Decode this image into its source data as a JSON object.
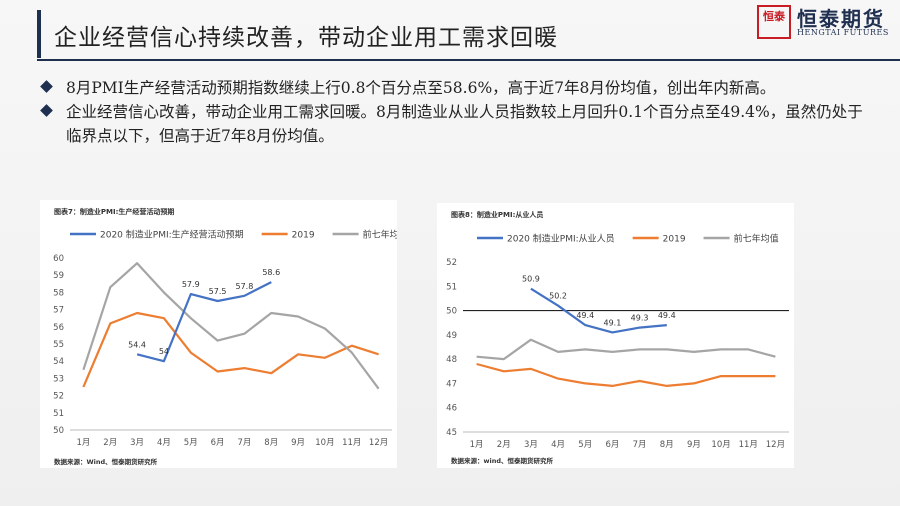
{
  "header": {
    "title": "企业经营信心持续改善，带动企业用工需求回暖",
    "logo_seal": "恒泰",
    "logo_name": "恒泰期货",
    "logo_sub": "HENGTAI FUTURES"
  },
  "bullets": [
    "8月PMI生产经营活动预期指数继续上行0.8个百分点至58.6%，高于近7年8月份均值，创出年内新高。",
    "企业经营信心改善，带动企业用工需求回暖。8月制造业从业人员指数较上月回升0.1个百分点至49.4%，虽然仍处于临界点以下，但高于近7年8月份均值。"
  ],
  "chart_data": [
    {
      "type": "line",
      "panel_title": "图表7：制造业PMI:生产经营活动预期",
      "source": "数据来源：Wind、恒泰期货研究所",
      "categories": [
        "1月",
        "2月",
        "3月",
        "4月",
        "5月",
        "6月",
        "7月",
        "8月",
        "9月",
        "10月",
        "11月",
        "12月"
      ],
      "ylim": [
        50,
        60
      ],
      "yticks": [
        50,
        51,
        52,
        53,
        54,
        55,
        56,
        57,
        58,
        59,
        60
      ],
      "grid": false,
      "legend_position": "top",
      "series": [
        {
          "name": "2020 制造业PMI:生产经营活动预期",
          "color": "#4472c4",
          "values": [
            null,
            null,
            54.4,
            54.0,
            57.9,
            57.5,
            57.8,
            58.6,
            null,
            null,
            null,
            null
          ]
        },
        {
          "name": "2019",
          "color": "#ed7d31",
          "values": [
            52.5,
            56.2,
            56.8,
            56.5,
            54.5,
            53.4,
            53.6,
            53.3,
            54.4,
            54.2,
            54.9,
            54.4
          ]
        },
        {
          "name": "前七年均值",
          "color": "#a5a5a5",
          "values": [
            53.5,
            58.3,
            59.7,
            58.0,
            56.5,
            55.2,
            55.6,
            56.8,
            56.6,
            55.9,
            54.5,
            52.4
          ]
        }
      ],
      "data_labels": [
        {
          "x": "3月",
          "text": "54.4"
        },
        {
          "x": "4月",
          "text": "54"
        },
        {
          "x": "5月",
          "text": "57.9"
        },
        {
          "x": "6月",
          "text": "57.5"
        },
        {
          "x": "7月",
          "text": "57.8"
        },
        {
          "x": "8月",
          "text": "58.6"
        }
      ]
    },
    {
      "type": "line",
      "panel_title": "图表8：制造业PMI:从业人员",
      "source": "数据来源：wind、恒泰期货研究所",
      "categories": [
        "1月",
        "2月",
        "3月",
        "4月",
        "5月",
        "6月",
        "7月",
        "8月",
        "9月",
        "10月",
        "11月",
        "12月"
      ],
      "ylim": [
        45,
        52
      ],
      "yticks": [
        45,
        46,
        47,
        48,
        49,
        50,
        51,
        52
      ],
      "grid": false,
      "reference_line": 50,
      "legend_position": "top",
      "series": [
        {
          "name": "2020 制造业PMI:从业人员",
          "color": "#4472c4",
          "values": [
            null,
            null,
            50.9,
            50.2,
            49.4,
            49.1,
            49.3,
            49.4,
            null,
            null,
            null,
            null
          ]
        },
        {
          "name": "2019",
          "color": "#ed7d31",
          "values": [
            47.8,
            47.5,
            47.6,
            47.2,
            47.0,
            46.9,
            47.1,
            46.9,
            47.0,
            47.3,
            47.3,
            47.3
          ]
        },
        {
          "name": "前七年均值",
          "color": "#a5a5a5",
          "values": [
            48.1,
            48.0,
            48.8,
            48.3,
            48.4,
            48.3,
            48.4,
            48.4,
            48.3,
            48.4,
            48.4,
            48.1
          ]
        }
      ],
      "data_labels": [
        {
          "x": "3月",
          "text": "50.9"
        },
        {
          "x": "4月",
          "text": "50.2"
        },
        {
          "x": "5月",
          "text": "49.4"
        },
        {
          "x": "6月",
          "text": "49.1"
        },
        {
          "x": "7月",
          "text": "49.3"
        },
        {
          "x": "8月",
          "text": "49.4"
        }
      ]
    }
  ]
}
